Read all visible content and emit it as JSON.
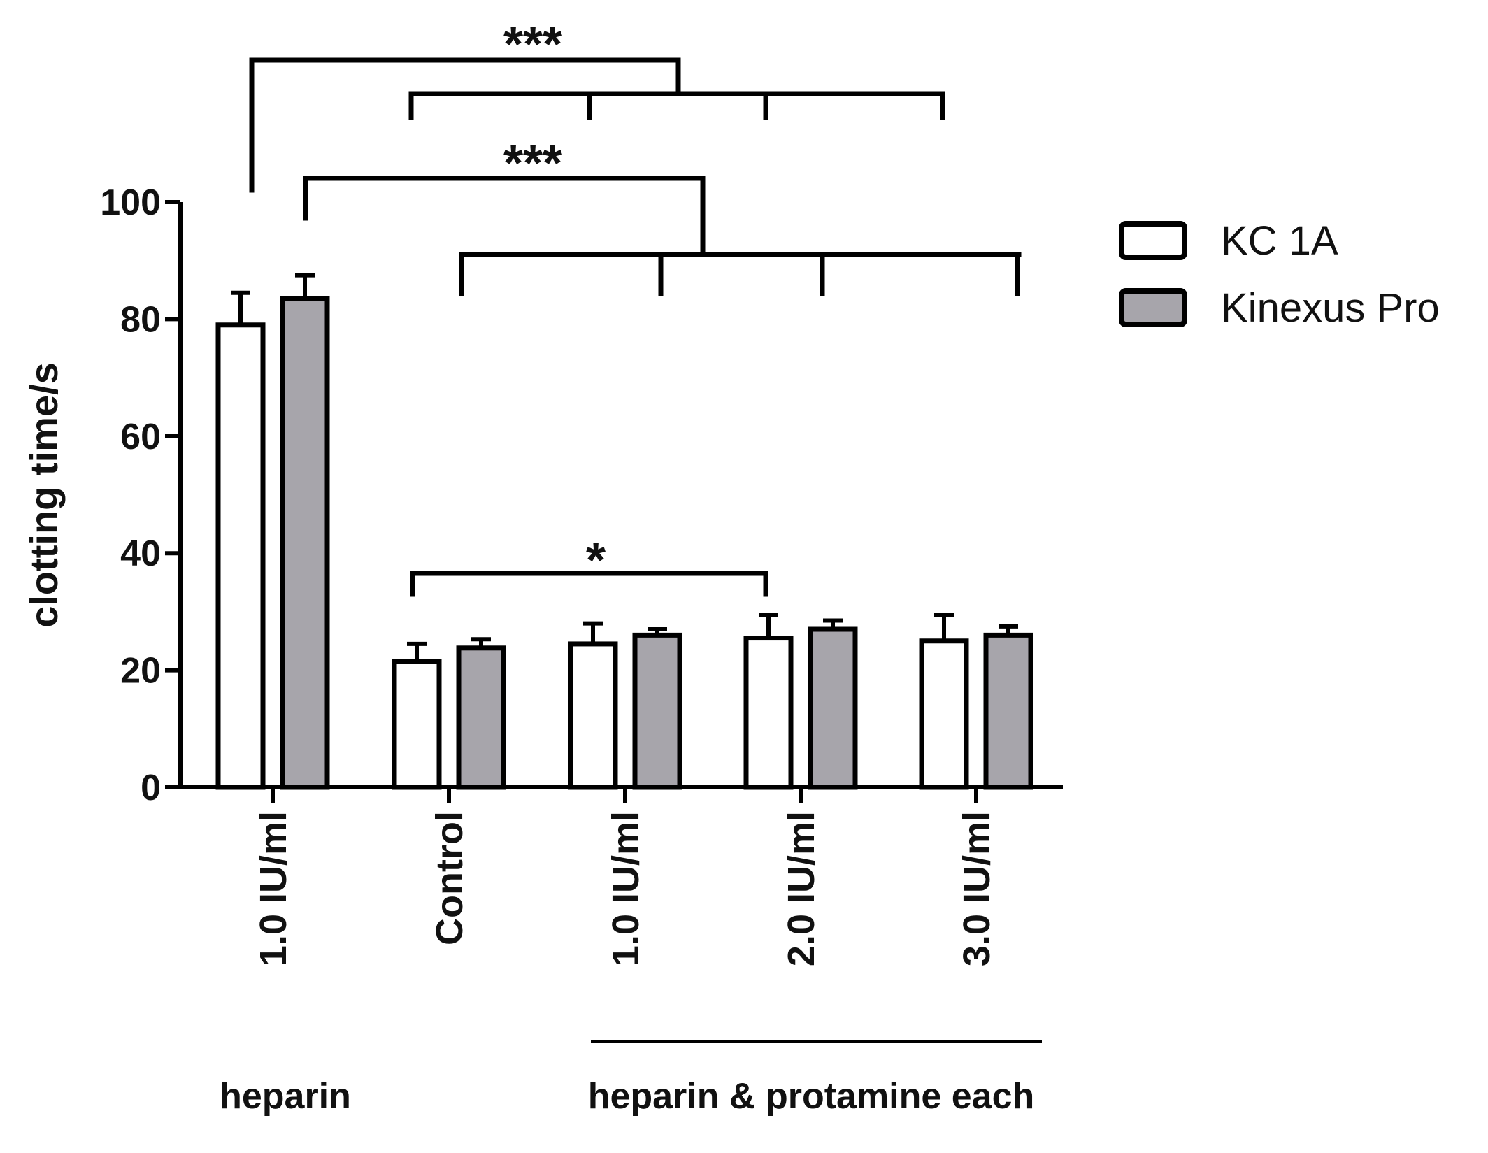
{
  "chart_data": {
    "type": "bar",
    "title": "",
    "xlabel": "",
    "ylabel": "clotting time/s",
    "ylim": [
      0,
      100
    ],
    "yticks": [
      0,
      20,
      40,
      60,
      80,
      100
    ],
    "categories": [
      "1.0 IU/ml",
      "Control",
      "1.0 IU/ml",
      "2.0 IU/ml",
      "3.0 IU/ml"
    ],
    "groups": [
      {
        "label": "heparin",
        "categories": [
          0
        ]
      },
      {
        "label": "heparin & protamine each",
        "categories": [
          2,
          3,
          4
        ]
      }
    ],
    "series": [
      {
        "name": "KC 1A",
        "color": "#ffffff",
        "values": [
          79,
          21.5,
          24.5,
          25.5,
          25
        ],
        "errors": [
          5.5,
          3,
          3.5,
          4,
          4.5
        ]
      },
      {
        "name": "Kinexus Pro",
        "color": "#a7a5ab",
        "values": [
          83.5,
          23.8,
          26,
          27,
          26
        ],
        "errors": [
          4,
          1.5,
          1,
          1.5,
          1.5
        ]
      }
    ],
    "legend": {
      "position": "top-right"
    },
    "significance": [
      {
        "label": "***",
        "from": "heparin 1.0 IU/ml KC 1A",
        "to": "Control, 1.0, 2.0, 3.0 IU/ml KC 1A"
      },
      {
        "label": "***",
        "from": "heparin 1.0 IU/ml Kinexus Pro",
        "to": "Control, 1.0, 2.0, 3.0 IU/ml Kinexus Pro"
      },
      {
        "label": "*",
        "from": "Control KC 1A",
        "to": "2.0 IU/ml KC 1A"
      }
    ],
    "grid": false
  }
}
